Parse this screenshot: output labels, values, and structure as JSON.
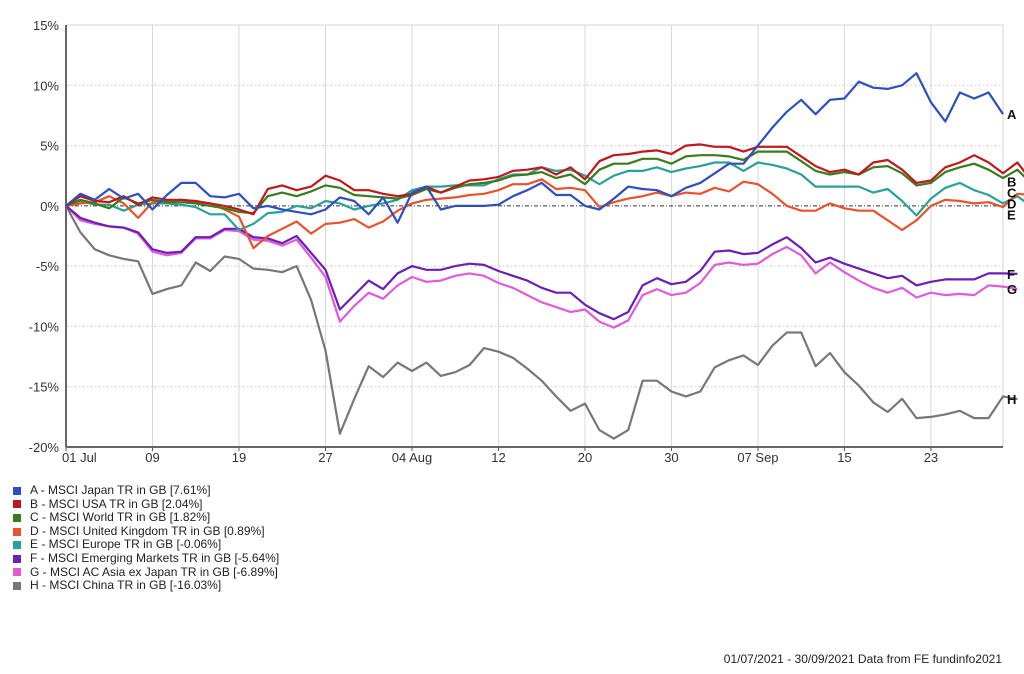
{
  "chart_data": {
    "type": "line",
    "title": "",
    "xlabel": "",
    "ylabel": "",
    "ylim": [
      -20,
      15
    ],
    "yticks": [
      "15%",
      "10%",
      "5%",
      "0%",
      "-5%",
      "-10%",
      "-15%",
      "-20%"
    ],
    "ytick_values": [
      15,
      10,
      5,
      0,
      -5,
      -10,
      -15,
      -20
    ],
    "xtick_labels": [
      "01 Jul",
      "09",
      "19",
      "27",
      "04 Aug",
      "12",
      "20",
      "30",
      "07 Sep",
      "15",
      "23"
    ],
    "xtick_index": [
      0,
      6,
      12,
      18,
      24,
      30,
      36,
      42,
      48,
      54,
      60
    ],
    "n_points": 66,
    "grid": true,
    "legend_position": "bottom-left",
    "series": [
      {
        "key": "A",
        "name": "A - MSCI Japan TR in GB [7.61%]",
        "color": "#2e4fbd",
        "end_label": "A",
        "values": [
          0,
          1.0,
          0.5,
          1.4,
          0.6,
          1.0,
          -0.3,
          0.9,
          1.9,
          1.9,
          0.8,
          0.7,
          1.0,
          -0.2,
          0,
          -0.3,
          -0.5,
          -0.7,
          -0.3,
          0.7,
          0.4,
          -0.7,
          0.7,
          -1.4,
          1.1,
          1.6,
          -0.3,
          0,
          0,
          0,
          0.1,
          0.8,
          1.3,
          1.9,
          0.9,
          0.9,
          0,
          -0.3,
          0.6,
          1.6,
          1.4,
          1.3,
          0.8,
          1.5,
          1.9,
          2.7,
          3.5,
          3.5,
          5.0,
          6.5,
          7.8,
          8.8,
          7.6,
          8.8,
          8.9,
          10.3,
          9.8,
          9.7,
          10.0,
          11.0,
          8.6,
          7.0,
          9.4,
          8.9,
          9.4,
          7.61
        ]
      },
      {
        "key": "B",
        "name": "B - MSCI USA TR in GB [2.04%]",
        "color": "#c0171c",
        "end_label": "B",
        "values": [
          0,
          0.8,
          0.4,
          0.3,
          0.8,
          0.1,
          0.7,
          0.5,
          0.5,
          0.4,
          0.2,
          0,
          -0.3,
          -0.7,
          1.4,
          1.7,
          1.3,
          1.6,
          2.5,
          2.1,
          1.3,
          1.3,
          1.0,
          0.8,
          1.0,
          1.6,
          1.1,
          1.6,
          2.1,
          2.2,
          2.4,
          2.9,
          3.0,
          3.2,
          2.6,
          3.2,
          2.2,
          3.7,
          4.2,
          4.3,
          4.5,
          4.6,
          4.3,
          5.0,
          5.1,
          4.9,
          4.9,
          4.5,
          4.9,
          4.9,
          4.9,
          4.1,
          3.3,
          2.8,
          3.0,
          2.6,
          3.6,
          3.8,
          3.0,
          1.9,
          2.1,
          3.2,
          3.6,
          4.2,
          3.6,
          2.7,
          3.6,
          2.04
        ]
      },
      {
        "key": "C",
        "name": "C - MSCI World TR in GB [1.82%]",
        "color": "#3c7a1e",
        "end_label": "C",
        "values": [
          0,
          0.5,
          0.2,
          -0.2,
          0.7,
          0.2,
          0.5,
          0.3,
          0.3,
          0.2,
          0,
          -0.2,
          -0.5,
          -0.6,
          0.8,
          1.1,
          0.8,
          1.2,
          1.7,
          1.5,
          0.9,
          0.8,
          0.7,
          0.6,
          0.9,
          1.4,
          1.1,
          1.5,
          1.8,
          1.9,
          2.1,
          2.5,
          2.6,
          2.8,
          2.3,
          2.6,
          1.8,
          3.0,
          3.5,
          3.5,
          3.9,
          3.9,
          3.5,
          4.1,
          4.2,
          4.2,
          4.1,
          3.8,
          4.5,
          4.5,
          4.5,
          3.7,
          2.9,
          2.6,
          2.8,
          2.6,
          3.2,
          3.3,
          2.7,
          1.7,
          1.9,
          2.8,
          3.2,
          3.5,
          3.0,
          2.3,
          3.0,
          1.82
        ]
      },
      {
        "key": "D",
        "name": "D - MSCI United Kingdom TR in GB [0.89%]",
        "color": "#e8532a",
        "end_label": "D",
        "values": [
          0,
          0.2,
          0.3,
          0.8,
          0.2,
          -1.0,
          0.3,
          0.4,
          0.5,
          0.3,
          0.2,
          -0.3,
          -0.9,
          -3.5,
          -2.5,
          -1.9,
          -1.3,
          -2.3,
          -1.5,
          -1.4,
          -1.1,
          -1.8,
          -1.3,
          -0.4,
          0.2,
          0.5,
          0.6,
          0.7,
          0.9,
          1.0,
          1.3,
          1.8,
          1.8,
          2.2,
          1.4,
          1.5,
          1.3,
          -0.1,
          0.3,
          0.6,
          0.8,
          1.1,
          0.8,
          1.1,
          1.0,
          1.5,
          1.2,
          2.0,
          1.8,
          1.0,
          0.0,
          -0.4,
          -0.4,
          0.2,
          -0.2,
          -0.4,
          -0.4,
          -1.2,
          -2.0,
          -1.2,
          0,
          0.5,
          0.4,
          0.2,
          0.3,
          -0.1,
          1.0,
          0.89
        ]
      },
      {
        "key": "E",
        "name": "E - MSCI Europe TR in GB [-0.06%]",
        "color": "#2aa198",
        "end_label": "E",
        "values": [
          0,
          0.4,
          0.1,
          0.1,
          -0.4,
          0.1,
          0.2,
          0.2,
          0.1,
          -0.1,
          -0.7,
          -0.7,
          -2.0,
          -1.5,
          -0.6,
          -0.5,
          0,
          -0.2,
          0.4,
          0.2,
          -0.3,
          0,
          0.2,
          0.5,
          1.3,
          1.6,
          1.6,
          1.7,
          1.7,
          1.7,
          2.2,
          2.6,
          2.6,
          3.2,
          2.9,
          3.0,
          2.5,
          1.8,
          2.5,
          2.9,
          2.9,
          3.2,
          2.8,
          3.1,
          3.3,
          3.6,
          3.6,
          2.9,
          3.6,
          3.4,
          3.1,
          2.6,
          1.6,
          1.6,
          1.6,
          1.6,
          1.1,
          1.4,
          0.4,
          -0.8,
          0.6,
          1.5,
          1.9,
          1.3,
          0.9,
          0.2,
          0.8,
          -0.06
        ]
      },
      {
        "key": "F",
        "name": "F - MSCI Emerging Markets TR in GB [-5.64%]",
        "color": "#6a1fb5",
        "end_label": "F",
        "values": [
          0,
          -1.0,
          -1.4,
          -1.7,
          -1.8,
          -2.2,
          -3.6,
          -3.9,
          -3.8,
          -2.6,
          -2.6,
          -1.9,
          -1.9,
          -2.6,
          -2.7,
          -3.1,
          -2.5,
          -3.9,
          -5.3,
          -8.6,
          -7.4,
          -6.2,
          -6.9,
          -5.6,
          -5.0,
          -5.3,
          -5.3,
          -5.0,
          -4.8,
          -4.9,
          -5.4,
          -5.8,
          -6.2,
          -6.8,
          -7.2,
          -7.2,
          -8.2,
          -8.9,
          -9.4,
          -8.8,
          -6.6,
          -6.0,
          -6.5,
          -6.3,
          -5.4,
          -3.8,
          -3.7,
          -4.0,
          -3.9,
          -3.2,
          -2.6,
          -3.5,
          -4.7,
          -4.3,
          -4.8,
          -5.2,
          -5.6,
          -6.0,
          -5.8,
          -6.6,
          -6.3,
          -6.1,
          -6.1,
          -6.1,
          -5.6,
          -5.6,
          -5.64
        ]
      },
      {
        "key": "G",
        "name": "G - MSCI AC Asia ex Japan TR in GB [-6.89%]",
        "color": "#e15ad9",
        "end_label": "G",
        "values": [
          0,
          -1.2,
          -1.5,
          -1.7,
          -1.8,
          -2.3,
          -3.8,
          -4.1,
          -3.9,
          -2.7,
          -2.7,
          -2.0,
          -2.1,
          -2.8,
          -2.9,
          -3.3,
          -2.8,
          -4.3,
          -5.9,
          -9.6,
          -8.3,
          -7.2,
          -7.7,
          -6.6,
          -5.9,
          -6.3,
          -6.2,
          -5.8,
          -5.6,
          -5.8,
          -6.4,
          -6.8,
          -7.4,
          -8.0,
          -8.4,
          -8.8,
          -8.6,
          -9.6,
          -10.1,
          -9.5,
          -7.4,
          -6.9,
          -7.4,
          -7.2,
          -6.4,
          -4.9,
          -4.7,
          -4.9,
          -4.8,
          -4.0,
          -3.4,
          -4.1,
          -5.6,
          -4.7,
          -5.5,
          -6.2,
          -6.8,
          -7.2,
          -6.8,
          -7.6,
          -7.2,
          -7.4,
          -7.3,
          -7.4,
          -6.6,
          -6.7,
          -6.89
        ]
      },
      {
        "key": "H",
        "name": "H - MSCI China TR in GB [-16.03%]",
        "color": "#777777",
        "end_label": "H",
        "values": [
          0,
          -2.2,
          -3.6,
          -4.1,
          -4.4,
          -4.6,
          -7.3,
          -6.9,
          -6.6,
          -4.7,
          -5.4,
          -4.2,
          -4.4,
          -5.2,
          -5.3,
          -5.5,
          -5.0,
          -7.8,
          -12.0,
          -18.9,
          -16.0,
          -13.3,
          -14.2,
          -13.0,
          -13.7,
          -13.0,
          -14.1,
          -13.8,
          -13.2,
          -11.8,
          -12.1,
          -12.6,
          -13.5,
          -14.5,
          -15.8,
          -17.0,
          -16.4,
          -18.6,
          -19.3,
          -18.6,
          -14.5,
          -14.5,
          -15.4,
          -15.8,
          -15.4,
          -13.4,
          -12.8,
          -12.4,
          -13.2,
          -11.6,
          -10.5,
          -10.5,
          -13.3,
          -12.2,
          -13.8,
          -14.9,
          -16.3,
          -17.1,
          -16.0,
          -17.6,
          -17.5,
          -17.3,
          -17.0,
          -17.6,
          -17.6,
          -15.8,
          -16.03
        ]
      }
    ],
    "reference_line": {
      "value": 0,
      "style": "dash-dot",
      "color": "#333333"
    }
  },
  "footer": {
    "caption": "01/07/2021 - 30/09/2021 Data from FE fundinfo2021"
  },
  "legend": {
    "items": [
      {
        "label": "A - MSCI Japan TR in GB [7.61%]",
        "color": "#2e4fbd"
      },
      {
        "label": "B - MSCI USA TR in GB [2.04%]",
        "color": "#c0171c"
      },
      {
        "label": "C - MSCI World TR in GB [1.82%]",
        "color": "#3c7a1e"
      },
      {
        "label": "D - MSCI United Kingdom TR in GB [0.89%]",
        "color": "#e8532a"
      },
      {
        "label": "E - MSCI Europe TR in GB [-0.06%]",
        "color": "#2aa198"
      },
      {
        "label": "F - MSCI Emerging Markets TR in GB [-5.64%]",
        "color": "#6a1fb5"
      },
      {
        "label": "G - MSCI AC Asia ex Japan TR in GB [-6.89%]",
        "color": "#e15ad9"
      },
      {
        "label": "H - MSCI China TR in GB [-16.03%]",
        "color": "#777777"
      }
    ]
  }
}
